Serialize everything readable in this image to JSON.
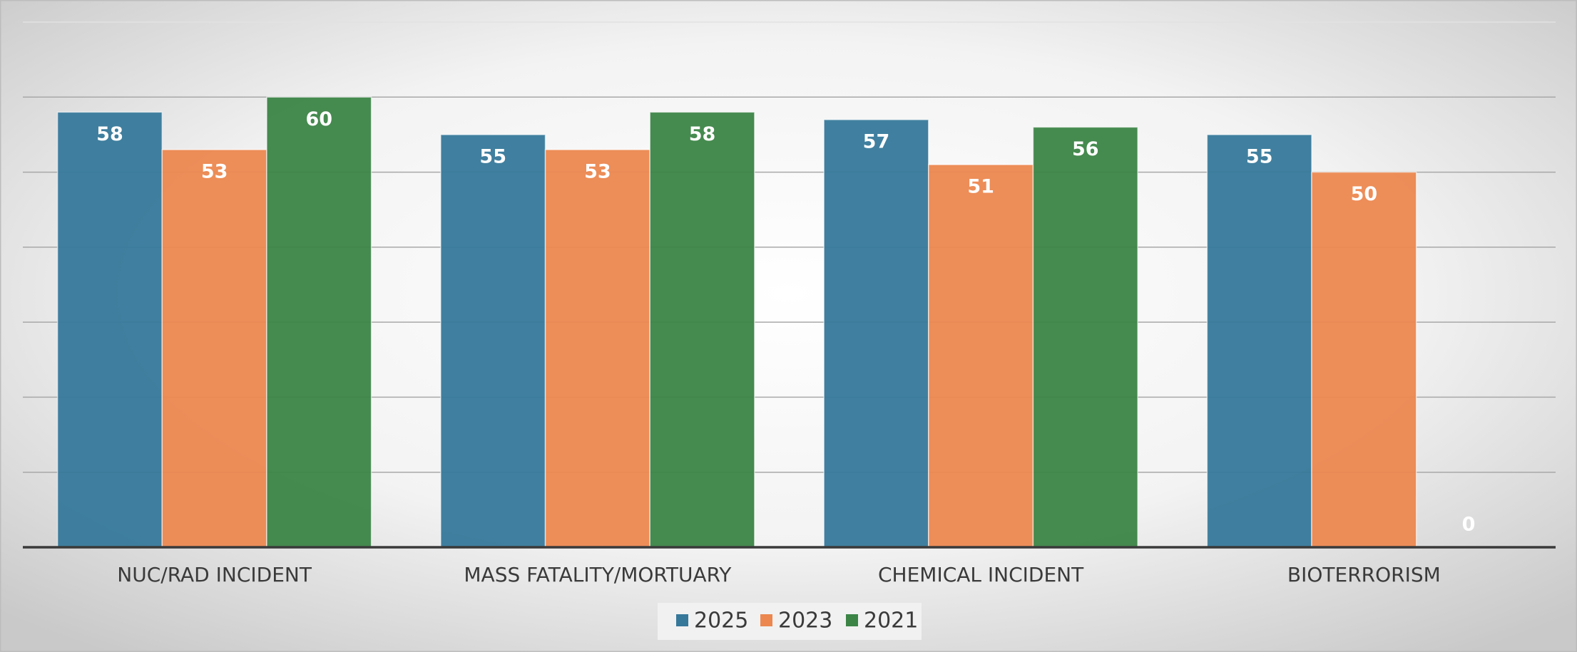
{
  "chart_data": {
    "type": "bar",
    "categories": [
      "NUC/RAD INCIDENT",
      "MASS FATALITY/MORTUARY",
      "CHEMICAL INCIDENT",
      "BIOTERRORISM"
    ],
    "series": [
      {
        "name": "2025",
        "color": "#36789a",
        "values": [
          58,
          55,
          57,
          55
        ]
      },
      {
        "name": "2023",
        "color": "#ec874f",
        "values": [
          53,
          53,
          51,
          50
        ]
      },
      {
        "name": "2021",
        "color": "#3b8446",
        "values": [
          60,
          58,
          56,
          0
        ]
      }
    ],
    "ylim": [
      0,
      70
    ],
    "yticks": [
      0,
      10,
      20,
      30,
      40,
      50,
      60,
      70
    ],
    "grid": true,
    "legend": "bottom"
  }
}
